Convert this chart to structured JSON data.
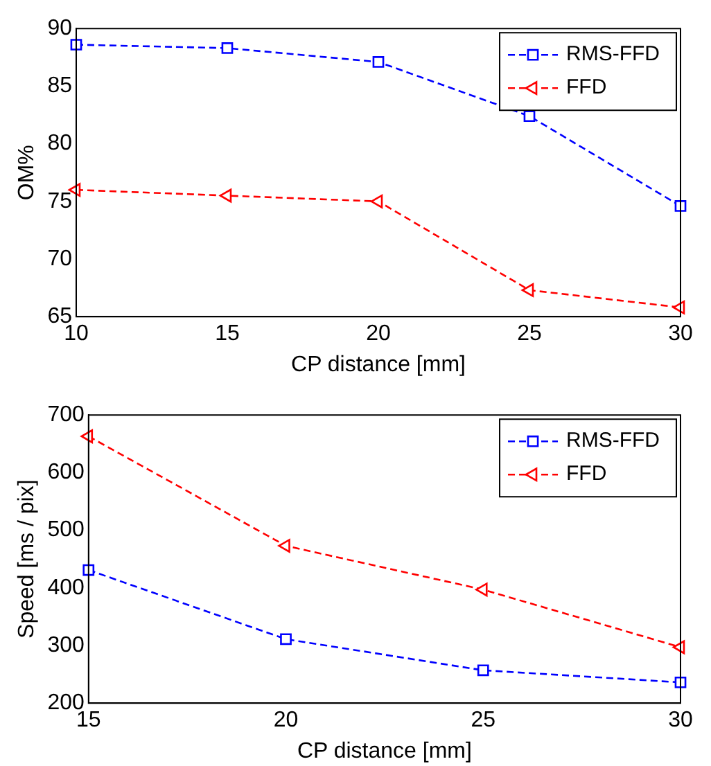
{
  "chart_data": [
    {
      "type": "line",
      "xlabel": "CP distance [mm]",
      "ylabel": "OM%",
      "x": [
        10,
        15,
        20,
        25,
        30
      ],
      "xlim": [
        10,
        30
      ],
      "xticks": [
        10,
        15,
        20,
        25,
        30
      ],
      "ylim": [
        65,
        90
      ],
      "yticks": [
        65,
        70,
        75,
        80,
        85,
        90
      ],
      "grid": false,
      "legend": "top right",
      "line_style": "dashed",
      "series": [
        {
          "name": "RMS-FFD",
          "color": "#0000ff",
          "marker": "square",
          "values": [
            88.6,
            88.3,
            87.1,
            82.4,
            74.6
          ]
        },
        {
          "name": "FFD",
          "color": "#ff0000",
          "marker": "triangle",
          "values": [
            76.0,
            75.5,
            75.0,
            67.3,
            65.8
          ]
        }
      ]
    },
    {
      "type": "line",
      "xlabel": "CP distance [mm]",
      "ylabel": "Speed [ms / pix]",
      "x": [
        15,
        20,
        25,
        30
      ],
      "xlim": [
        15,
        30
      ],
      "xticks": [
        15,
        20,
        25,
        30
      ],
      "ylim": [
        200,
        700
      ],
      "yticks": [
        200,
        300,
        400,
        500,
        600,
        700
      ],
      "grid": false,
      "legend": "top right",
      "line_style": "dashed",
      "series": [
        {
          "name": "RMS-FFD",
          "color": "#0000ff",
          "marker": "square",
          "values": [
            431,
            311,
            257,
            236
          ]
        },
        {
          "name": "FFD",
          "color": "#ff0000",
          "marker": "triangle",
          "values": [
            663,
            473,
            397,
            297
          ]
        }
      ]
    }
  ]
}
